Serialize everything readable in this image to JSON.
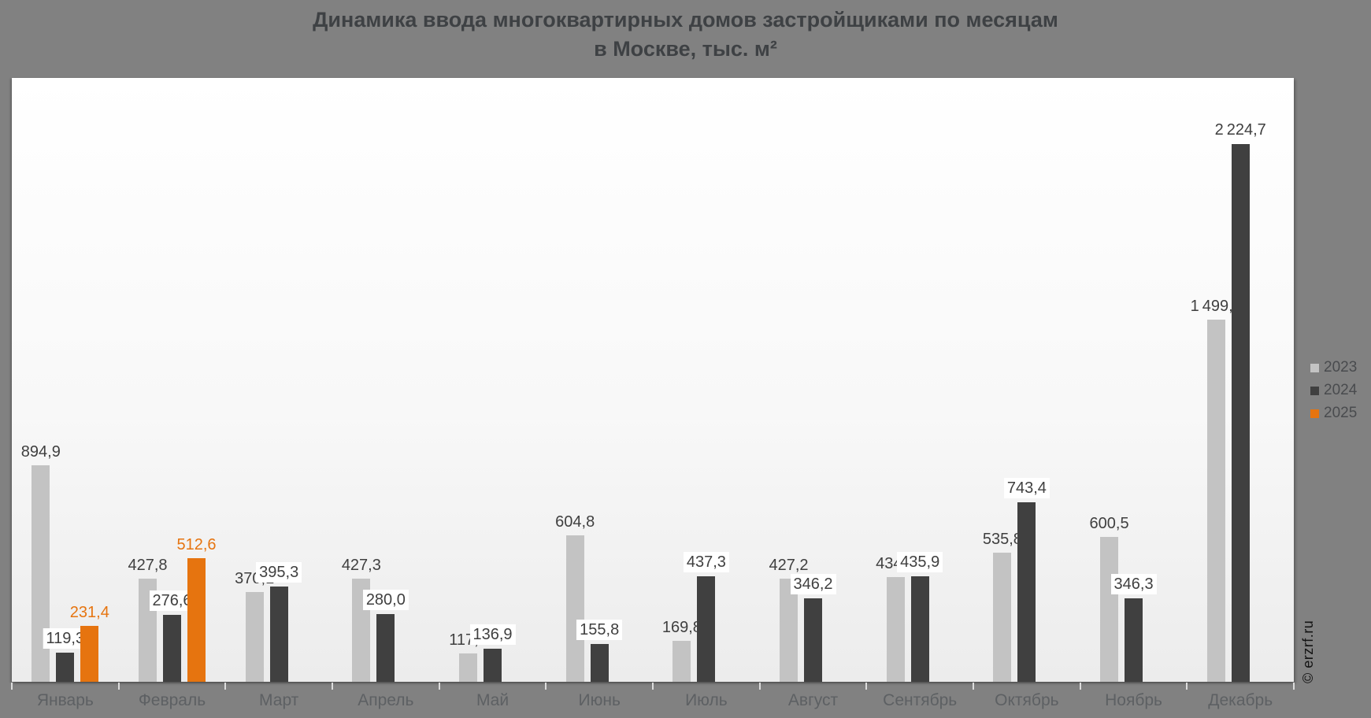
{
  "title": {
    "line1": "Динамика ввода многоквартирных домов застройщиками по месяцам",
    "line2": "в Москве, тыс. м²"
  },
  "watermark": "© erzrf.ru",
  "colors": {
    "background": "#818181",
    "plot_top": "#ffffff",
    "plot_bottom": "#ececec",
    "title_text": "#3e4144",
    "value_label": "#3f3f3f",
    "value_label_2025": "#e6740f",
    "axis_label": "#5d6063",
    "legend_label": "#494b4e",
    "tick": "#dcdcdc",
    "series_2023": "#c3c3c3",
    "series_2024": "#404040",
    "series_2025": "#e6740f"
  },
  "chart_data": {
    "type": "bar",
    "title": "Динамика ввода многоквартирных домов застройщиками по месяцам в Москве, тыс. м²",
    "xlabel": "",
    "ylabel": "тыс. м²",
    "ylim": [
      0,
      2500
    ],
    "grid": false,
    "legend_position": "right",
    "decimal_separator": ",",
    "thousands_separator": "thin-space",
    "categories": [
      "Январь",
      "Февраль",
      "Март",
      "Апрель",
      "Май",
      "Июнь",
      "Июль",
      "Август",
      "Сентябрь",
      "Октябрь",
      "Ноябрь",
      "Декабрь"
    ],
    "series": [
      {
        "name": "2023",
        "color": "#c3c3c3",
        "label_color": "#3f3f3f",
        "label_bg": false,
        "values": [
          894.9,
          427.8,
          370.1,
          427.3,
          117.5,
          604.8,
          169.8,
          427.2,
          434.5,
          535.8,
          600.5,
          1499.0
        ]
      },
      {
        "name": "2024",
        "color": "#404040",
        "label_color": "#3f3f3f",
        "label_bg": true,
        "values": [
          119.3,
          276.6,
          395.3,
          280.0,
          136.9,
          155.8,
          437.3,
          346.2,
          435.9,
          743.4,
          346.3,
          2224.7
        ]
      },
      {
        "name": "2025",
        "color": "#e6740f",
        "label_color": "#e6740f",
        "label_bg": false,
        "values": [
          231.4,
          512.6,
          null,
          null,
          null,
          null,
          null,
          null,
          null,
          null,
          null,
          null
        ]
      }
    ]
  }
}
